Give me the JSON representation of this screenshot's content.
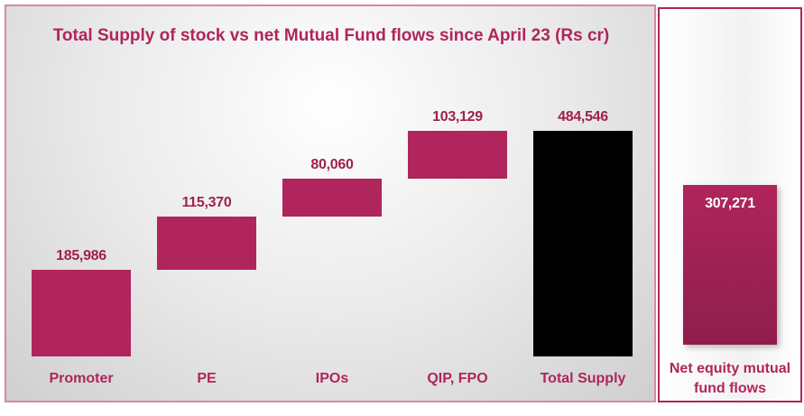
{
  "chart_data": [
    {
      "type": "bar",
      "subtype": "waterfall",
      "title": "Total Supply of stock vs net Mutual Fund flows since April 23 (Rs cr)",
      "categories": [
        "Promoter",
        "PE",
        "IPOs",
        "QIP, FPO",
        "Total Supply"
      ],
      "values": [
        185986,
        115370,
        80060,
        103129,
        484546
      ],
      "value_labels": [
        "185,986",
        "115,370",
        "80,060",
        "103,129",
        "484,546"
      ],
      "colors": {
        "increment": "#b0255c",
        "total": "#000000"
      },
      "grid": false,
      "legend": "none"
    },
    {
      "type": "bar",
      "categories": [
        "Net equity mutual fund flows"
      ],
      "values": [
        307271
      ],
      "value_labels": [
        "307,271"
      ],
      "colors": {
        "bar": "#a82358"
      },
      "grid": false,
      "legend": "none"
    }
  ]
}
